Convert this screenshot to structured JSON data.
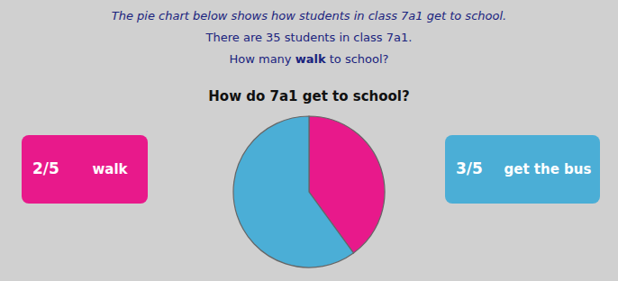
{
  "chart_data": {
    "type": "pie",
    "title": "How do 7a1 get to school?",
    "annotations": [
      "The pie chart below shows how students in class 7a1 get to school.",
      "There are 35 students in class 7a1.",
      "How many walk to school?"
    ],
    "categories": [
      "walk",
      "get the bus"
    ],
    "values": [
      0.4,
      0.6
    ],
    "colors": [
      "#E8198B",
      "#4BAED6"
    ],
    "data_labels": true,
    "value_labels": [
      "2/5",
      "3/5"
    ]
  }
}
